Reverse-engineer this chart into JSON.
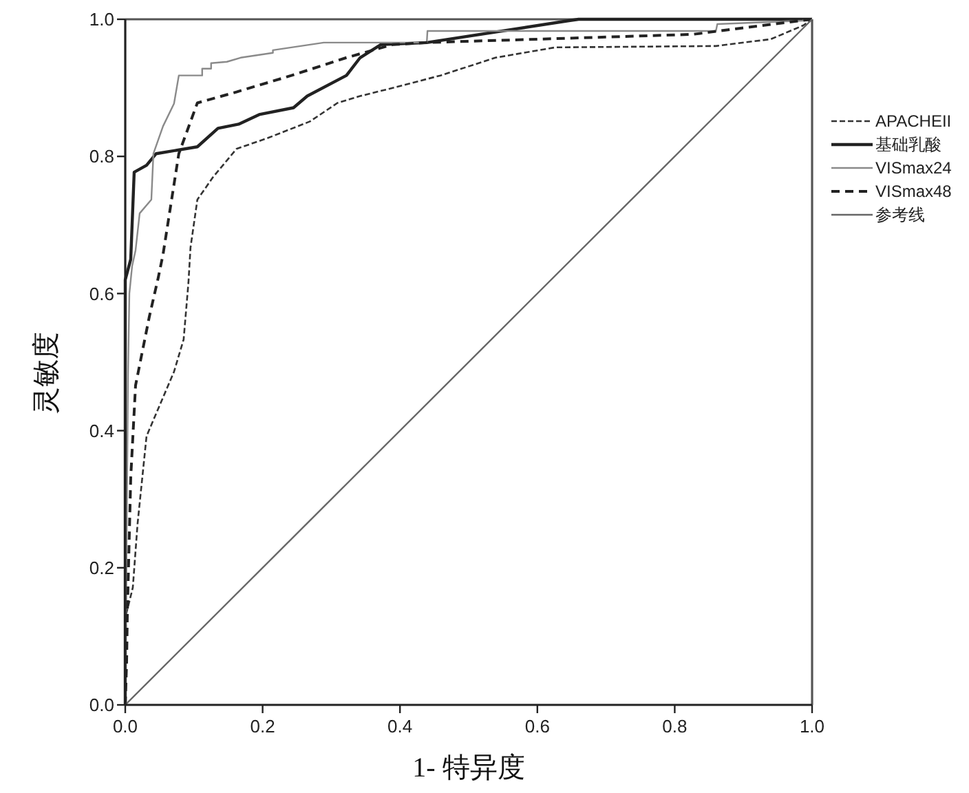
{
  "chart_data": {
    "type": "line",
    "xlabel": "1- 特异度",
    "ylabel": "灵敏度",
    "xlim": [
      0,
      1
    ],
    "ylim": [
      0,
      1
    ],
    "xticks": [
      {
        "value": 0,
        "label": "0.0"
      },
      0.2,
      0.4,
      0.6,
      0.8,
      {
        "value": 1,
        "label": "1.0"
      }
    ],
    "yticks": [
      {
        "value": 0,
        "label": "0.0"
      },
      0.2,
      0.4,
      0.6,
      0.8,
      {
        "value": 1,
        "label": "1.0"
      }
    ],
    "legend": "right",
    "marker": "none",
    "series": [
      {
        "name": "APACHEII",
        "color": "#333333",
        "line_style": "dashed",
        "x": [
          0,
          0.001,
          0.011,
          0.018,
          0.031,
          0.071,
          0.085,
          0.092,
          0.095,
          0.105,
          0.128,
          0.162,
          0.208,
          0.269,
          0.309,
          0.342,
          0.382,
          0.459,
          0.539,
          0.626,
          0.86,
          0.94,
          0.987,
          1
        ],
        "values": [
          0,
          0.131,
          0.171,
          0.265,
          0.392,
          0.486,
          0.533,
          0.616,
          0.667,
          0.737,
          0.77,
          0.811,
          0.827,
          0.851,
          0.878,
          0.888,
          0.898,
          0.918,
          0.944,
          0.959,
          0.961,
          0.971,
          0.991,
          1
        ]
      },
      {
        "name": "基础乳酸",
        "color": "#222222",
        "line_style": "solid",
        "x": [
          0,
          0,
          0.008,
          0.013,
          0.031,
          0.045,
          0.105,
          0.135,
          0.165,
          0.195,
          0.245,
          0.265,
          0.322,
          0.342,
          0.372,
          0.439,
          0.646,
          0.66,
          1
        ],
        "values": [
          0,
          0.62,
          0.65,
          0.777,
          0.787,
          0.804,
          0.814,
          0.841,
          0.847,
          0.861,
          0.871,
          0.888,
          0.918,
          0.944,
          0.963,
          0.966,
          0.998,
          1,
          1
        ]
      },
      {
        "name": "VISmax24",
        "color": "#8a8a8a",
        "line_style": "solid",
        "x": [
          0,
          0.004,
          0.006,
          0.01,
          0.015,
          0.021,
          0.038,
          0.041,
          0.055,
          0.071,
          0.078,
          0.112,
          0.112,
          0.125,
          0.125,
          0.148,
          0.168,
          0.215,
          0.215,
          0.289,
          0.439,
          0.44,
          0.86,
          0.862,
          0.986,
          1
        ],
        "values": [
          0,
          0.48,
          0.6,
          0.64,
          0.663,
          0.717,
          0.737,
          0.804,
          0.844,
          0.877,
          0.918,
          0.918,
          0.928,
          0.928,
          0.936,
          0.938,
          0.944,
          0.951,
          0.955,
          0.966,
          0.966,
          0.983,
          0.983,
          0.993,
          0.998,
          1
        ]
      },
      {
        "name": "VISmax48",
        "color": "#222222",
        "line_style": "dashed",
        "x": [
          0,
          0.002,
          0.003,
          0.008,
          0.015,
          0.035,
          0.048,
          0.055,
          0.078,
          0.105,
          0.162,
          0.242,
          0.322,
          0.389,
          0.439,
          0.826,
          0.96,
          1
        ],
        "values": [
          0,
          0.064,
          0.131,
          0.332,
          0.466,
          0.566,
          0.623,
          0.657,
          0.804,
          0.878,
          0.894,
          0.918,
          0.944,
          0.963,
          0.966,
          0.978,
          0.995,
          1
        ]
      },
      {
        "name": "参考线",
        "color": "#666666",
        "line_style": "solid",
        "x": [
          0,
          1
        ],
        "values": [
          0,
          1
        ]
      }
    ]
  }
}
